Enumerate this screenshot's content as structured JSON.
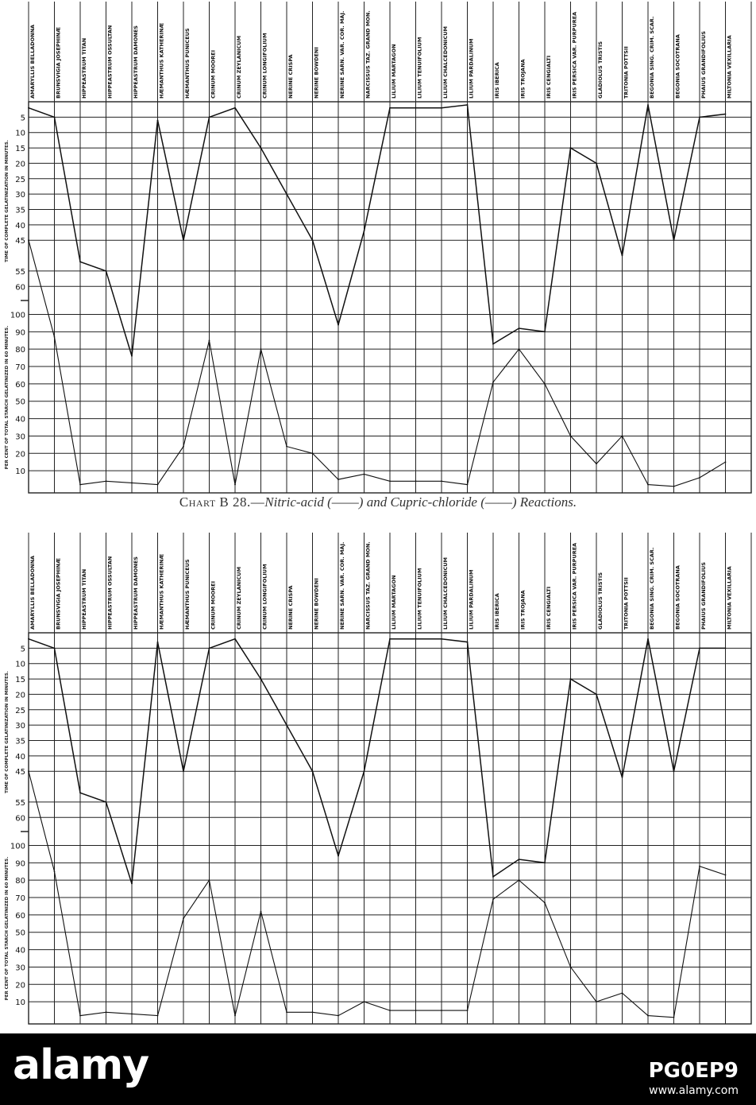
{
  "chart_data": [
    {
      "id": "top",
      "type": "line",
      "categories": [
        "AMARYLLIS BELLADONNA",
        "BRUNSVIGIA JOSEPHINÆ",
        "HIPPEASTRUM TITAN",
        "HIPPEASTRUM OSSULTAN",
        "HIPPEASTRUM DAMONES",
        "HÆMANTHUS KATHERINÆ",
        "HÆMANTHUS PUNICEUS",
        "CRINUM MOOREI",
        "CRINUM ZEYLANICUM",
        "CRINUM LONGIFOLIUM",
        "NERINE CRISPA",
        "NERINE BOWDENI",
        "NERINE SARN. VAR. COR. MAJ.",
        "NARCISSUS TAZ. GRAND MON.",
        "LILIUM MARTAGON",
        "LILIUM TENUIFOLIUM",
        "LILIUM CHALCEDONICUM",
        "LILIUM PARDALINUM",
        "IRIS IBERICA",
        "IRIS TROJANA",
        "IRIS CENGIALTI",
        "IRIS PERSICA VAR. PURPUREA",
        "GLADIOLUS TRISTIS",
        "TRITONIA POTTSII",
        "BEGONIA SING. CRIM. SCAR.",
        "BEGONIA SOCOTRANA",
        "PHAIUS GRANDIFOLIUS",
        "MILTONIA VEXILLARIA"
      ],
      "ylabel_upper": "TIME OF COMPLETE GELATINIZATION IN MINUTES.",
      "ylabel_lower": "PER CENT OF TOTAL STARCH GELATINIZED IN 60 MINUTES.",
      "upper_ticks": [
        "5",
        "10",
        "15",
        "20",
        "25",
        "30",
        "35",
        "40",
        "45",
        "55",
        "60"
      ],
      "lower_ticks": [
        "100",
        "90",
        "80",
        "70",
        "60",
        "50",
        "40",
        "30",
        "20",
        "10"
      ],
      "series": [
        {
          "values": [
            2,
            5,
            52,
            55,
            76,
            6,
            45,
            5,
            2,
            15,
            30,
            45,
            94,
            42,
            2,
            2,
            2,
            1,
            83,
            92,
            90,
            15,
            20,
            50,
            1,
            45,
            5,
            4
          ]
        },
        {
          "values": [
            45,
            87,
            2,
            4,
            3,
            2,
            24,
            85,
            2,
            80,
            24,
            20,
            5,
            8,
            4,
            4,
            4,
            2,
            61,
            80,
            60,
            30,
            14,
            30,
            2,
            1,
            6,
            15
          ]
        }
      ]
    },
    {
      "id": "bottom",
      "type": "line",
      "categories": [
        "AMARYLLIS BELLADONNA",
        "BRUNSVIGIA JOSEPHINÆ",
        "HIPPEASTRUM TITAN",
        "HIPPEASTRUM OSSULTAN",
        "HIPPEASTRUM DAMONES",
        "HÆMANTHUS KATHERINÆ",
        "HÆMANTHUS PUNICEUS",
        "CRINUM MOOREI",
        "CRINUM ZEYLANICUM",
        "CRINUM LONGIFOLIUM",
        "NERINE CRISPA",
        "NERINE BOWDENI",
        "NERINE SARN. VAR. COR. MAJ.",
        "NARCISSUS TAZ. GRAND MON.",
        "LILIUM MARTAGON",
        "LILIUM TENUIFOLIUM",
        "LILIUM CHALCEDONICUM",
        "LILIUM PARDALINUM",
        "IRIS IBERICA",
        "IRIS TROJANA",
        "IRIS CENGIALTI",
        "IRIS PERSICA VAR. PURPUREA",
        "GLADIOLUS TRISTIS",
        "TRITONIA POTTSII",
        "BEGONIA SING. CRIM. SCAR.",
        "BEGONIA SOCOTRANA",
        "PHAIUS GRANDIFOLIUS",
        "MILTONIA VEXILLARIA"
      ],
      "ylabel_upper": "TIME OF COMPLETE GELATINIZATION IN MINUTES.",
      "ylabel_lower": "PER CENT OF TOTAL STARCH GELATINIZED IN 60 MINUTES.",
      "upper_ticks": [
        "5",
        "10",
        "15",
        "20",
        "25",
        "30",
        "35",
        "40",
        "45",
        "55",
        "60"
      ],
      "lower_ticks": [
        "100",
        "90",
        "80",
        "70",
        "60",
        "50",
        "40",
        "30",
        "20",
        "10"
      ],
      "series": [
        {
          "values": [
            2,
            5,
            52,
            55,
            78,
            3,
            45,
            5,
            2,
            15,
            30,
            45,
            94,
            45,
            2,
            2,
            2,
            3,
            82,
            92,
            90,
            15,
            20,
            47,
            2,
            45,
            5,
            5
          ]
        },
        {
          "values": [
            45,
            85,
            2,
            4,
            3,
            2,
            58,
            80,
            2,
            62,
            4,
            4,
            2,
            10,
            5,
            5,
            5,
            5,
            69,
            80,
            67,
            30,
            10,
            15,
            2,
            1,
            88,
            83
          ]
        }
      ]
    }
  ],
  "caption": {
    "lead": "Chart B 28.—",
    "part1": "Nitric-acid (",
    "dash1": "——",
    "part2": ") and Cupric-chloride (",
    "dash2": "——",
    "part3": ") Reactions."
  },
  "footer": {
    "brand": "alamy",
    "image_id": "PG0EP9",
    "url": "www.alamy.com"
  },
  "colors": {
    "ink": "#111111",
    "grid": "#222222",
    "footer_bg": "#000000"
  }
}
